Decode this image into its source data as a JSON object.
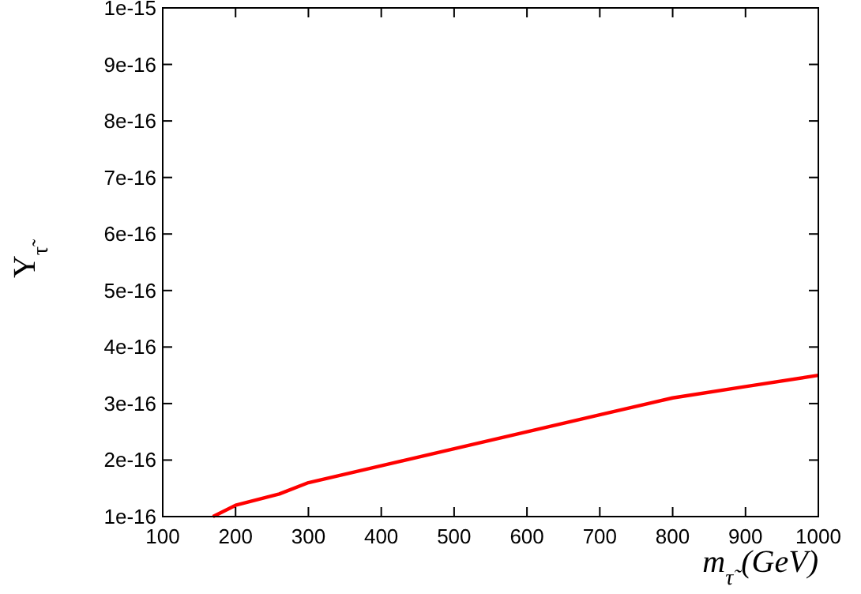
{
  "chart_data": {
    "type": "line",
    "xlabel": "m$_{τ̃}$ (GeV)",
    "ylabel": "Y$_{τ̃}$",
    "x": [
      169,
      200,
      260,
      300,
      400,
      500,
      600,
      700,
      800,
      900,
      1000
    ],
    "series": [
      {
        "color": "#ff0000",
        "values": [
          1e-16,
          1.2e-16,
          1.4e-16,
          1.6e-16,
          1.9e-16,
          2.2e-16,
          2.5e-16,
          2.8e-16,
          3.1e-16,
          3.3e-16,
          3.5e-16
        ]
      }
    ],
    "xlim": [
      100,
      1000
    ],
    "xticks": [
      100,
      200,
      300,
      400,
      500,
      600,
      700,
      800,
      900,
      1000
    ],
    "ylim": [
      1e-16,
      1e-15
    ],
    "yticks": [
      {
        "value": 1e-16,
        "label": "1e-16"
      },
      {
        "value": 2e-16,
        "label": "2e-16"
      },
      {
        "value": 3e-16,
        "label": "3e-16"
      },
      {
        "value": 4e-16,
        "label": "4e-16"
      },
      {
        "value": 5e-16,
        "label": "5e-16"
      },
      {
        "value": 6e-16,
        "label": "6e-16"
      },
      {
        "value": 7e-16,
        "label": "7e-16"
      },
      {
        "value": 8e-16,
        "label": "8e-16"
      },
      {
        "value": 9e-16,
        "label": "9e-16"
      },
      {
        "value": 1e-15,
        "label": "1e-15"
      }
    ],
    "grid": false,
    "marker": "none",
    "line_style": "solid"
  }
}
